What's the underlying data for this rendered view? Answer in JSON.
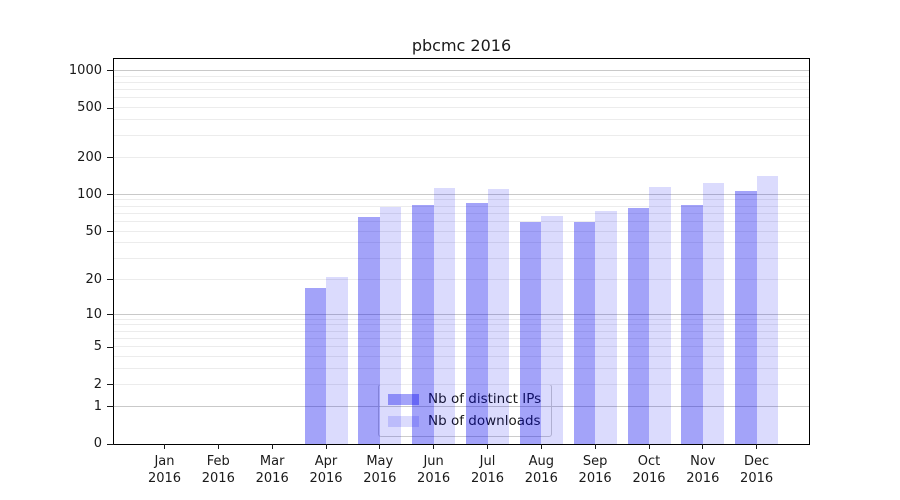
{
  "colors": {
    "bar_ips": "rgba(0,0,238,0.36)",
    "bar_downloads": "rgba(0,0,238,0.14)",
    "grid_major": "#c9c9c9",
    "grid_minor": "#ececec",
    "axis": "#000000",
    "text": "#1a1a1a"
  },
  "chart_data": {
    "type": "bar",
    "title": "pbcmc 2016",
    "xlabel": "",
    "ylabel": "",
    "yscale": "log1p-symlog (0 at baseline, log spacing above)",
    "grid": "on",
    "year": "2016",
    "categories": [
      "Jan",
      "Feb",
      "Mar",
      "Apr",
      "May",
      "Jun",
      "Jul",
      "Aug",
      "Sep",
      "Oct",
      "Nov",
      "Dec"
    ],
    "series": [
      {
        "name": "Nb of distinct IPs",
        "color_key": "bar_ips",
        "values": [
          0,
          0,
          0,
          17,
          66,
          83,
          85,
          60,
          60,
          78,
          82,
          107
        ]
      },
      {
        "name": "Nb of downloads",
        "color_key": "bar_downloads",
        "values": [
          0,
          0,
          0,
          21,
          80,
          113,
          112,
          67,
          74,
          116,
          125,
          142
        ]
      }
    ],
    "y_ticks": [
      0,
      1,
      2,
      5,
      10,
      20,
      50,
      100,
      200,
      500,
      1000
    ],
    "y_major_gridlines": [
      1,
      10,
      100,
      1000
    ],
    "y_minor_gridline_bases": [
      2,
      3,
      4,
      5,
      6,
      7,
      8,
      9
    ],
    "y_minor_gridline_decades": [
      1,
      10,
      100
    ],
    "ylim_top": 1245,
    "legend": {
      "position": "lower center",
      "entries": [
        "Nb of distinct IPs",
        "Nb of downloads"
      ]
    }
  }
}
